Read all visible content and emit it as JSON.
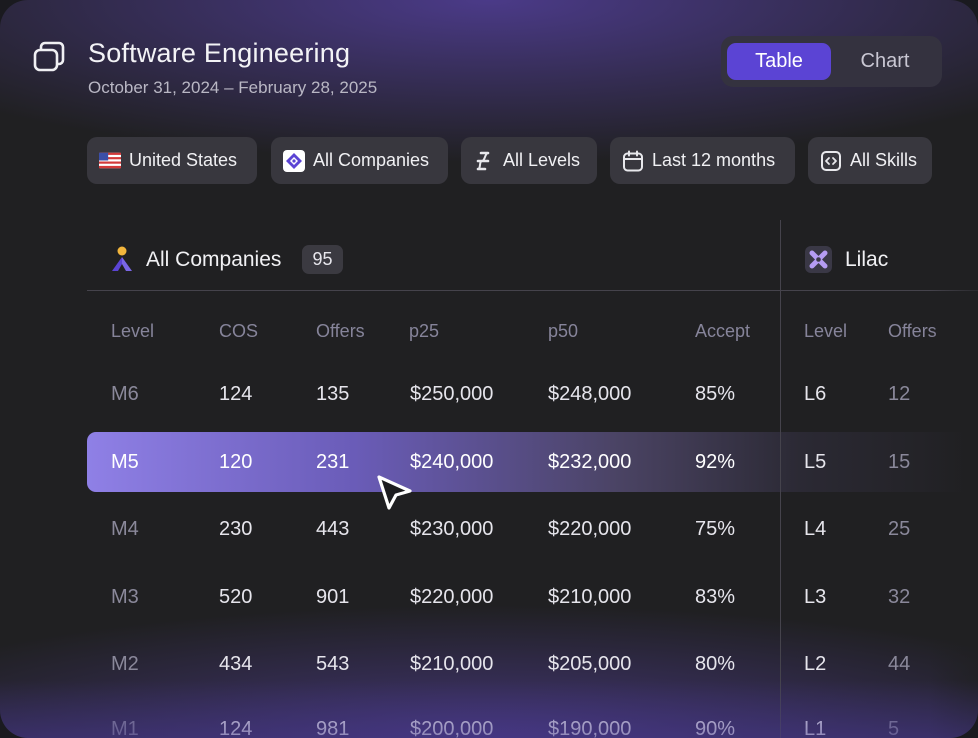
{
  "header": {
    "title": "Software Engineering",
    "date_range": "October 31, 2024 – February 28, 2025",
    "icon": "stack-icon"
  },
  "view_toggle": {
    "options": [
      "Table",
      "Chart"
    ],
    "selected": "Table"
  },
  "filters": [
    {
      "label": "United States",
      "icon": "us-flag-icon"
    },
    {
      "label": "All Companies",
      "icon": "companies-icon"
    },
    {
      "label": "All Levels",
      "icon": "levels-icon"
    },
    {
      "label": "Last 12 months",
      "icon": "calendar-icon"
    },
    {
      "label": "All Skills",
      "icon": "code-icon"
    }
  ],
  "group_main": {
    "title": "All Companies",
    "count": "95",
    "columns": [
      "Level",
      "COS",
      "Offers",
      "p25",
      "p50",
      "Accept"
    ],
    "rows": [
      [
        "M6",
        "124",
        "135",
        "$250,000",
        "$248,000",
        "85%"
      ],
      [
        "M5",
        "120",
        "231",
        "$240,000",
        "$232,000",
        "92%"
      ],
      [
        "M4",
        "230",
        "443",
        "$230,000",
        "$220,000",
        "75%"
      ],
      [
        "M3",
        "520",
        "901",
        "$220,000",
        "$210,000",
        "83%"
      ],
      [
        "M2",
        "434",
        "543",
        "$210,000",
        "$205,000",
        "80%"
      ],
      [
        "M1",
        "124",
        "981",
        "$200,000",
        "$190,000",
        "90%"
      ]
    ],
    "selected_row": "M5"
  },
  "group_lilac": {
    "title": "Lilac",
    "columns": [
      "Level",
      "Offers"
    ],
    "rows": [
      [
        "L6",
        "12"
      ],
      [
        "L5",
        "15"
      ],
      [
        "L4",
        "25"
      ],
      [
        "L3",
        "32"
      ],
      [
        "L2",
        "44"
      ],
      [
        "L1",
        "5"
      ]
    ]
  },
  "colors": {
    "accent": "#5b44d4",
    "highlight": "#8f80e6",
    "background": "#202022",
    "chip": "#38373e"
  }
}
